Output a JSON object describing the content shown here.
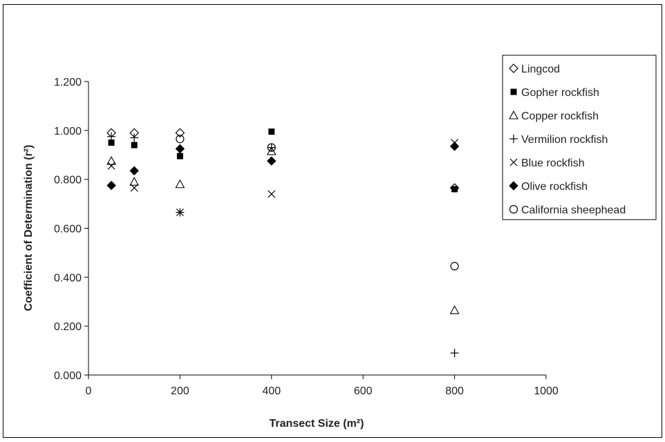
{
  "chart_data": {
    "type": "scatter",
    "xlabel": "Transect Size (m²)",
    "ylabel": "Coefficient of Determination (r²)",
    "xlim": [
      0,
      1000
    ],
    "ylim": [
      0,
      1.2
    ],
    "xticks": [
      0,
      200,
      400,
      600,
      800,
      1000
    ],
    "xtick_labels": [
      "0",
      "200",
      "400",
      "600",
      "800",
      "1000"
    ],
    "yticks": [
      0,
      0.2,
      0.4,
      0.6,
      0.8,
      1.0,
      1.2
    ],
    "ytick_labels": [
      "0.000",
      "0.200",
      "0.400",
      "0.600",
      "0.800",
      "1.000",
      "1.200"
    ],
    "grid": false,
    "legend_position": "top-right",
    "series": [
      {
        "name": "Lingcod",
        "marker": "diamond-open",
        "points": [
          [
            50,
            0.99
          ],
          [
            100,
            0.99
          ],
          [
            200,
            0.99
          ],
          [
            800,
            0.765
          ]
        ]
      },
      {
        "name": "Gopher rockfish",
        "marker": "square-filled",
        "points": [
          [
            50,
            0.95
          ],
          [
            100,
            0.94
          ],
          [
            200,
            0.895
          ],
          [
            400,
            0.995
          ],
          [
            800,
            0.76
          ]
        ]
      },
      {
        "name": "Copper rockfish",
        "marker": "triangle-open",
        "points": [
          [
            50,
            0.875
          ],
          [
            100,
            0.79
          ],
          [
            200,
            0.78
          ],
          [
            400,
            0.915
          ],
          [
            800,
            0.265
          ]
        ]
      },
      {
        "name": "Vermilion rockfish",
        "marker": "plus",
        "points": [
          [
            50,
            0.975
          ],
          [
            100,
            0.97
          ],
          [
            200,
            0.665
          ],
          [
            400,
            0.93
          ],
          [
            800,
            0.09
          ]
        ]
      },
      {
        "name": "Blue rockfish",
        "marker": "cross",
        "points": [
          [
            50,
            0.855
          ],
          [
            100,
            0.765
          ],
          [
            200,
            0.665
          ],
          [
            400,
            0.74
          ],
          [
            800,
            0.95
          ]
        ]
      },
      {
        "name": "Olive rockfish",
        "marker": "diamond-filled",
        "points": [
          [
            50,
            0.775
          ],
          [
            100,
            0.835
          ],
          [
            200,
            0.925
          ],
          [
            400,
            0.875
          ],
          [
            800,
            0.935
          ]
        ]
      },
      {
        "name": "California sheephead",
        "marker": "circle-open",
        "points": [
          [
            200,
            0.965
          ],
          [
            400,
            0.93
          ],
          [
            800,
            0.445
          ]
        ]
      }
    ]
  }
}
